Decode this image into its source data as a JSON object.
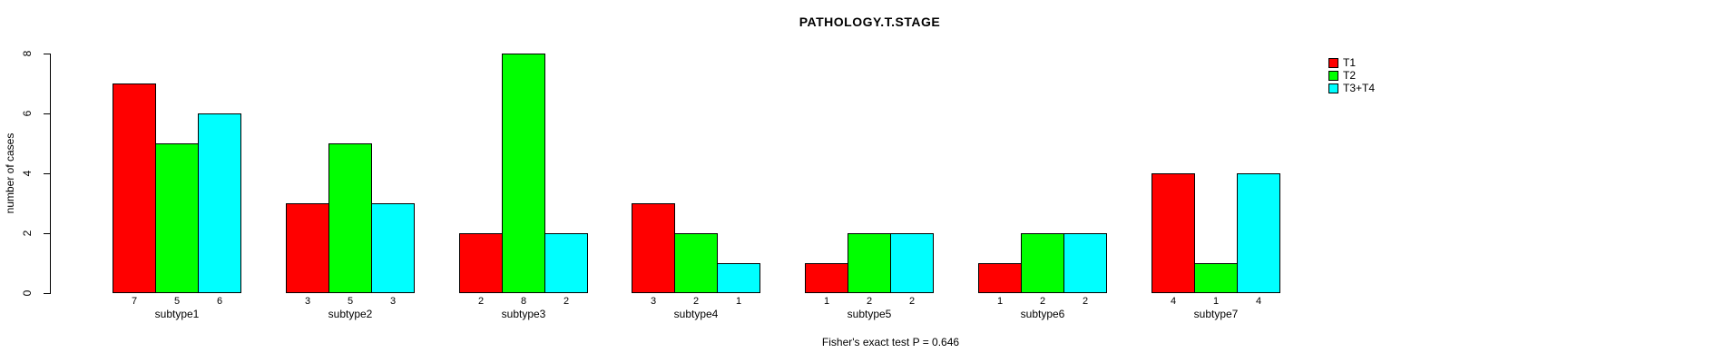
{
  "background_color": "#FFFFFF",
  "chart_data": {
    "type": "bar",
    "title": "PATHOLOGY.T.STAGE",
    "categories": [
      "subtype1",
      "subtype2",
      "subtype3",
      "subtype4",
      "subtype5",
      "subtype6",
      "subtype7"
    ],
    "series": [
      {
        "name": "T1",
        "color": "#FF0000",
        "values": [
          7,
          3,
          2,
          3,
          1,
          1,
          4
        ]
      },
      {
        "name": "T2",
        "color": "#00FF00",
        "values": [
          5,
          5,
          8,
          2,
          2,
          2,
          1
        ]
      },
      {
        "name": "T3+T4",
        "color": "#00FFFF",
        "values": [
          6,
          3,
          2,
          1,
          2,
          2,
          4
        ]
      }
    ],
    "xlabel": "",
    "ylabel": "number of cases",
    "ylim": [
      0,
      8
    ],
    "yticks": [
      0,
      2,
      4,
      6,
      8
    ],
    "grid": false,
    "bar_borders": "#000000",
    "bar_value_labels": true,
    "legend_position": "top-right",
    "annotation": "Fisher's exact test P = 0.646"
  }
}
